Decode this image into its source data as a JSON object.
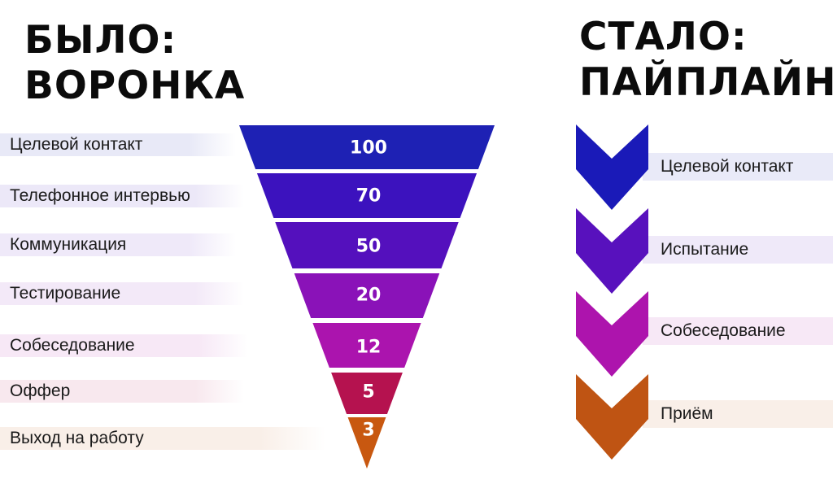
{
  "left": {
    "title_line1": "БЫЛО:",
    "title_line2": "ВОРОНКА",
    "stages": [
      {
        "label": "Целевой контакт",
        "value": "100",
        "color": "#1e21b4",
        "band": "#e8e9f7"
      },
      {
        "label": "Телефонное интервью",
        "value": "70",
        "color": "#3c12be",
        "band": "#ece8f8"
      },
      {
        "label": "Коммуникация",
        "value": "50",
        "color": "#5410bd",
        "band": "#efe9f9"
      },
      {
        "label": "Тестирование",
        "value": "20",
        "color": "#8a12b8",
        "band": "#f3e9f8"
      },
      {
        "label": "Собеседование",
        "value": "12",
        "color": "#ab14ae",
        "band": "#f7e8f6"
      },
      {
        "label": "Оффер",
        "value": "5",
        "color": "#b5124f",
        "band": "#f8e8ee"
      },
      {
        "label": "Выход на работу",
        "value": "3",
        "color": "#c85810",
        "band": "#f9efe8"
      }
    ]
  },
  "right": {
    "title_line1": "СТАЛО:",
    "title_line2": "ПАЙПЛАЙН",
    "stages": [
      {
        "label": "Целевой контакт",
        "color": "#1a1ab8",
        "band": "#e9eaf8"
      },
      {
        "label": "Испытание",
        "color": "#5811bd",
        "band": "#efe9f9"
      },
      {
        "label": "Собеседование",
        "color": "#ad14ad",
        "band": "#f7e8f6"
      },
      {
        "label": "Приём",
        "color": "#bf5413",
        "band": "#f9efe8"
      }
    ]
  }
}
